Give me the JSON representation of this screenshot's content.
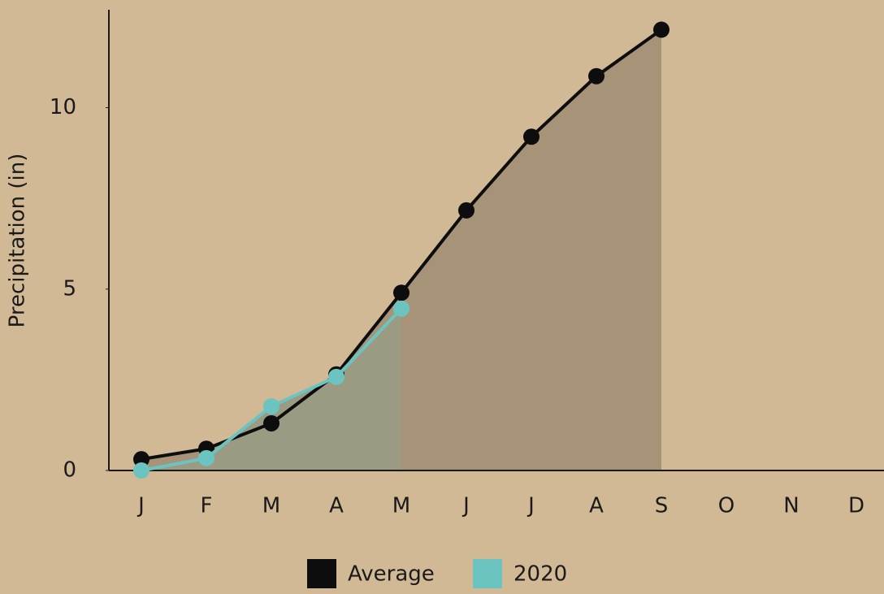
{
  "chart_data": {
    "type": "line",
    "y_label": "Precipitation (in)",
    "categories": [
      "J",
      "F",
      "M",
      "A",
      "M",
      "J",
      "J",
      "A",
      "S",
      "O",
      "N",
      "D"
    ],
    "series": [
      {
        "name": "Average",
        "color": "#0d0d0d",
        "area_color": "#a69378",
        "values": [
          0.31,
          0.6,
          1.3,
          2.65,
          4.9,
          7.17,
          9.2,
          10.87,
          12.15,
          null,
          null,
          null
        ]
      },
      {
        "name": "2020",
        "color": "#6cc4c0",
        "area_color": "#9b9a83",
        "values": [
          0,
          0.34,
          1.77,
          2.58,
          4.46,
          null,
          null,
          null,
          null,
          null,
          null,
          null
        ]
      }
    ],
    "ylim": [
      0,
      12.7
    ],
    "yticks": [
      0,
      5,
      10
    ],
    "grid": false,
    "legend": "bottom"
  }
}
